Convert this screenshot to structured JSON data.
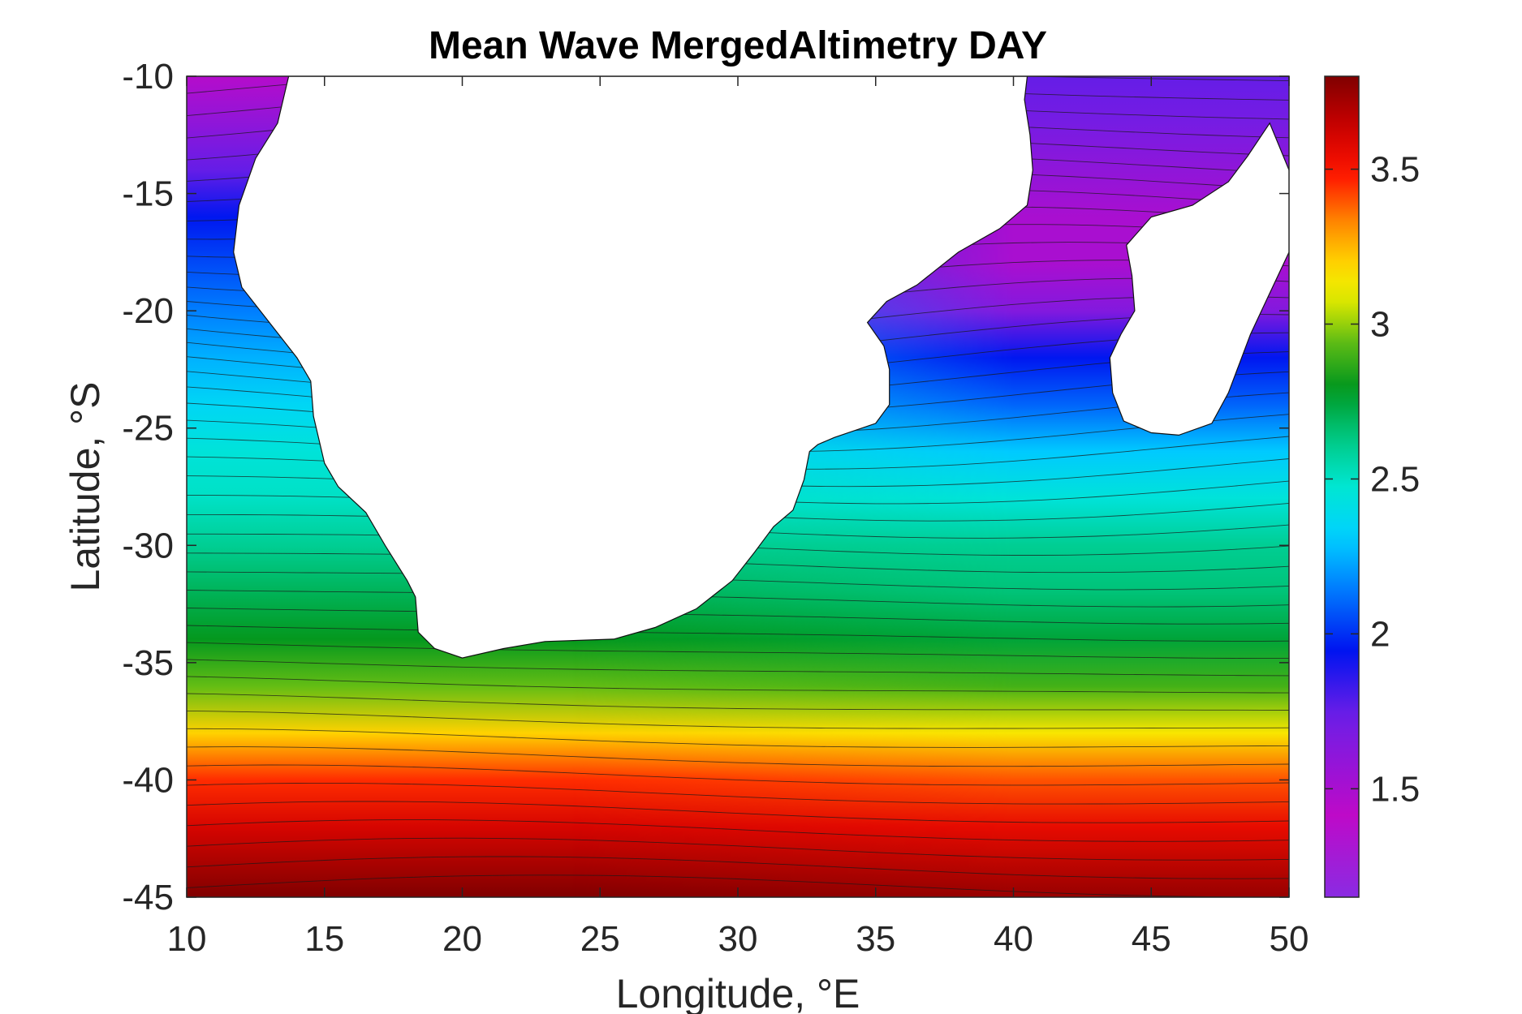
{
  "chart_data": {
    "type": "heatmap",
    "title": "Mean Wave MergedAltimetry DAY",
    "xlabel": "Longitude, °E",
    "ylabel": "Latitude, °S",
    "xlim": [
      10,
      50
    ],
    "ylim": [
      -45,
      -10
    ],
    "x_ticks": [
      10,
      15,
      20,
      25,
      30,
      35,
      40,
      45,
      50
    ],
    "y_ticks": [
      -45,
      -40,
      -35,
      -30,
      -25,
      -20,
      -15,
      -10
    ],
    "x_tick_labels": [
      "10",
      "15",
      "20",
      "25",
      "30",
      "35",
      "40",
      "45",
      "50"
    ],
    "y_tick_labels": [
      "-45",
      "-40",
      "-35",
      "-30",
      "-25",
      "-20",
      "-15",
      "-10"
    ],
    "colorbar": {
      "min": 1.15,
      "max": 3.8,
      "ticks": [
        1.5,
        2,
        2.5,
        3,
        3.5
      ],
      "tick_labels": [
        "1.5",
        "2",
        "2.5",
        "3",
        "3.5"
      ],
      "colormap": "jet-like (purple-blue-cyan-green-yellow-red-darkred)"
    },
    "grid": false,
    "legend": "colorbar right",
    "contour_lines": true,
    "land_color": "#ffffff",
    "approx_field": {
      "description": "approximate mean wave height by latitude band (open ocean)",
      "latitude": [
        -45,
        -42,
        -40,
        -38,
        -36,
        -34,
        -32,
        -30,
        -28,
        -26,
        -24,
        -22,
        -20,
        -18,
        -16,
        -14,
        -12,
        -10
      ],
      "west_value": [
        3.8,
        3.6,
        3.45,
        3.2,
        2.95,
        2.8,
        2.7,
        2.6,
        2.5,
        2.45,
        2.35,
        2.25,
        2.15,
        2.05,
        1.95,
        1.75,
        1.6,
        1.45
      ],
      "east_value": [
        3.75,
        3.55,
        3.4,
        3.15,
        2.9,
        2.75,
        2.65,
        2.6,
        2.45,
        2.3,
        2.1,
        1.95,
        1.65,
        1.5,
        1.5,
        1.6,
        1.7,
        1.75
      ]
    }
  }
}
